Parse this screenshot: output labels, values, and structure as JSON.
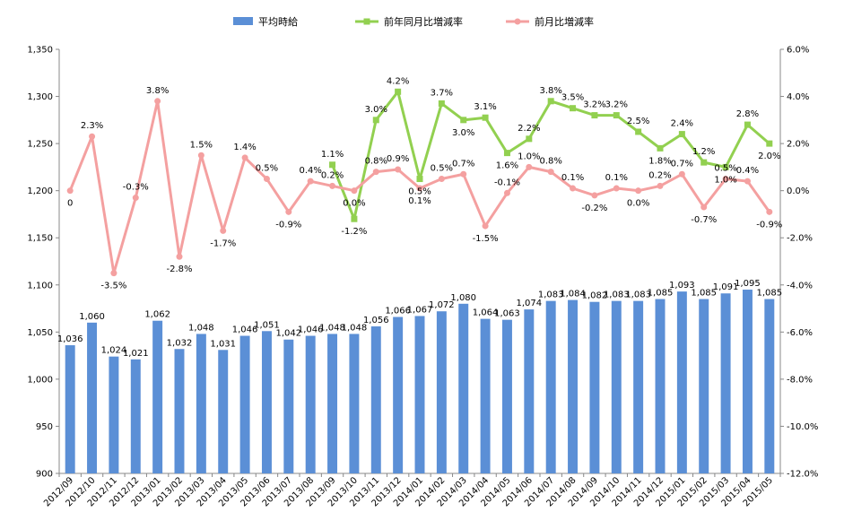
{
  "chart_data": {
    "type": "bar",
    "categories": [
      "2012/09",
      "2012/10",
      "2012/11",
      "2012/12",
      "2013/01",
      "2013/02",
      "2013/03",
      "2013/04",
      "2013/05",
      "2013/06",
      "2013/07",
      "2013/08",
      "2013/09",
      "2013/10",
      "2013/11",
      "2013/12",
      "2014/01",
      "2014/02",
      "2014/03",
      "2014/04",
      "2014/05",
      "2014/06",
      "2014/07",
      "2014/08",
      "2014/09",
      "2014/10",
      "2014/11",
      "2014/12",
      "2015/01",
      "2015/02",
      "2015/03",
      "2015/04",
      "2015/05"
    ],
    "series": [
      {
        "name": "平均時給",
        "kind": "bar",
        "axis": "left",
        "color": "#5B8FD6",
        "values": [
          1036,
          1060,
          1024,
          1021,
          1062,
          1032,
          1048,
          1031,
          1046,
          1051,
          1042,
          1046,
          1048,
          1048,
          1056,
          1066,
          1067,
          1072,
          1080,
          1064,
          1063,
          1074,
          1083,
          1084,
          1082,
          1083,
          1083,
          1085,
          1093,
          1085,
          1091,
          1095,
          1085
        ],
        "labels": [
          "1,036",
          "1,060",
          "1,024",
          "1,021",
          "1,062",
          "1,032",
          "1,048",
          "1,031",
          "1,046",
          "1,051",
          "1,042",
          "1,046",
          "1,048",
          "1,048",
          "1,056",
          "1,066",
          "1,067",
          "1,072",
          "1,080",
          "1,064",
          "1,063",
          "1,074",
          "1,083",
          "1,084",
          "1,082",
          "1,083",
          "1,083",
          "1,085",
          "1,093",
          "1,085",
          "1,091",
          "1,095",
          "1,085"
        ]
      },
      {
        "name": "前年同月比増減率",
        "kind": "line",
        "axis": "right",
        "color": "#92D050",
        "marker": "square",
        "values": [
          null,
          null,
          null,
          null,
          null,
          null,
          null,
          null,
          null,
          null,
          null,
          null,
          1.1,
          -1.2,
          3.0,
          4.2,
          0.5,
          3.7,
          3.0,
          3.1,
          1.6,
          2.2,
          3.8,
          3.5,
          3.2,
          3.2,
          2.5,
          1.8,
          2.4,
          1.2,
          1.0,
          2.8,
          2.0
        ],
        "labels": [
          null,
          null,
          null,
          null,
          null,
          null,
          null,
          null,
          null,
          null,
          null,
          null,
          "1.1%",
          "-1.2%",
          "3.0%",
          "4.2%",
          "0.5%",
          "3.7%",
          "3.0%",
          "3.1%",
          "1.6%",
          "2.2%",
          "3.8%",
          "3.5%",
          "3.2%",
          "3.2%",
          "2.5%",
          "1.8%",
          "2.4%",
          "1.2%",
          "1.0%",
          "2.8%",
          "2.0%"
        ]
      },
      {
        "name": "前月比増減率",
        "kind": "line",
        "axis": "right",
        "color": "#F4A0A0",
        "marker": "circle",
        "values": [
          0,
          2.3,
          -3.5,
          -0.3,
          3.8,
          -2.8,
          1.5,
          -1.7,
          1.4,
          0.5,
          -0.9,
          0.4,
          0.2,
          0.0,
          0.8,
          0.9,
          0.1,
          0.5,
          0.7,
          -1.5,
          -0.1,
          1.0,
          0.8,
          0.1,
          -0.2,
          0.1,
          0.0,
          0.2,
          0.7,
          -0.7,
          0.5,
          0.4,
          -0.9
        ],
        "labels": [
          "0",
          "2.3%",
          "-3.5%",
          "-0.3%",
          "3.8%",
          "-2.8%",
          "1.5%",
          "-1.7%",
          "1.4%",
          "0.5%",
          "-0.9%",
          "0.4%",
          "0.2%",
          "0.0%",
          "0.8%",
          "0.9%",
          "0.1%",
          "0.5%",
          "0.7%",
          "-1.5%",
          "-0.1%",
          "1.0%",
          "0.8%",
          "0.1%",
          "-0.2%",
          "0.1%",
          "0.0%",
          "0.2%",
          "0.7%",
          "-0.7%",
          "0.5%",
          "0.4%",
          "-0.9%"
        ]
      }
    ],
    "y_left": {
      "min": 900,
      "max": 1350,
      "step": 50,
      "tick_labels": [
        "900",
        "950",
        "1,000",
        "1,050",
        "1,100",
        "1,150",
        "1,200",
        "1,250",
        "1,300",
        "1,350"
      ]
    },
    "y_right": {
      "min": -12,
      "max": 6,
      "step": 2,
      "tick_labels": [
        "-12.0%",
        "-10.0%",
        "-8.0%",
        "-6.0%",
        "-4.0%",
        "-2.0%",
        "0.0%",
        "2.0%",
        "4.0%",
        "6.0%"
      ]
    },
    "legend_position": "top",
    "grid": false
  }
}
